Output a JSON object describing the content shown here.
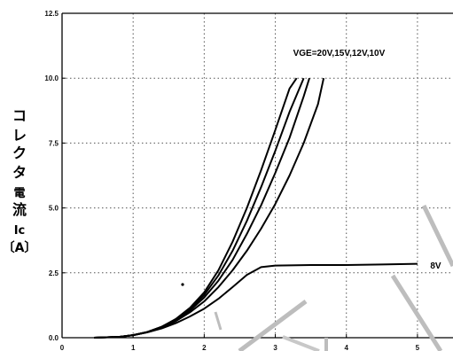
{
  "chart_data": {
    "type": "line",
    "title": "",
    "xlabel": "",
    "ylabel_lines": [
      "コ",
      "レ",
      "ク",
      "タ",
      "電",
      "流",
      "Ic",
      "〔A〕"
    ],
    "xlim": [
      0,
      5.5
    ],
    "ylim": [
      0,
      12.5
    ],
    "xticks": [
      "0",
      "1",
      "2",
      "3",
      "4",
      "5"
    ],
    "yticks": [
      "0.0",
      "2.5",
      "5.0",
      "7.5",
      "10.0",
      "12.5"
    ],
    "grid": true,
    "annotations": [
      {
        "text": "VGE=20V,15V,12V,10V",
        "x": 3.25,
        "y": 11.0
      },
      {
        "text": "8V",
        "x": 5.18,
        "y": 2.8
      }
    ],
    "series": [
      {
        "values_x": [
          0.45,
          0.8,
          1.0,
          1.2,
          1.4,
          1.6,
          1.8,
          2.0,
          2.2,
          2.4,
          2.6,
          2.8,
          3.0,
          3.2,
          3.3
        ],
        "values_y": [
          0.0,
          0.03,
          0.1,
          0.22,
          0.42,
          0.72,
          1.15,
          1.75,
          2.6,
          3.7,
          5.0,
          6.45,
          8.0,
          9.6,
          10.0
        ]
      },
      {
        "values_x": [
          0.45,
          0.8,
          1.0,
          1.2,
          1.4,
          1.6,
          1.8,
          2.0,
          2.2,
          2.4,
          2.6,
          2.8,
          3.0,
          3.2,
          3.4
        ],
        "values_y": [
          0.0,
          0.03,
          0.1,
          0.22,
          0.42,
          0.7,
          1.1,
          1.65,
          2.4,
          3.35,
          4.5,
          5.8,
          7.2,
          8.7,
          10.0
        ]
      },
      {
        "values_x": [
          0.45,
          0.8,
          1.0,
          1.2,
          1.4,
          1.6,
          1.8,
          2.0,
          2.2,
          2.4,
          2.6,
          2.8,
          3.0,
          3.2,
          3.4,
          3.48
        ],
        "values_y": [
          0.0,
          0.03,
          0.1,
          0.22,
          0.4,
          0.68,
          1.05,
          1.55,
          2.2,
          3.0,
          4.0,
          5.1,
          6.35,
          7.7,
          9.3,
          10.0
        ]
      },
      {
        "values_x": [
          0.45,
          0.8,
          1.0,
          1.2,
          1.4,
          1.6,
          1.8,
          2.0,
          2.2,
          2.4,
          2.6,
          2.8,
          3.0,
          3.2,
          3.4,
          3.6,
          3.68
        ],
        "values_y": [
          0.0,
          0.03,
          0.1,
          0.21,
          0.38,
          0.64,
          0.98,
          1.4,
          1.95,
          2.6,
          3.35,
          4.2,
          5.15,
          6.25,
          7.5,
          9.0,
          10.0
        ]
      },
      {
        "values_x": [
          0.45,
          0.8,
          1.0,
          1.2,
          1.4,
          1.6,
          1.8,
          2.0,
          2.2,
          2.4,
          2.6,
          2.8,
          3.0,
          3.5,
          4.0,
          4.5,
          5.0
        ],
        "values_y": [
          0.0,
          0.03,
          0.1,
          0.21,
          0.36,
          0.56,
          0.82,
          1.12,
          1.5,
          1.95,
          2.42,
          2.72,
          2.78,
          2.8,
          2.8,
          2.82,
          2.85
        ]
      }
    ]
  }
}
